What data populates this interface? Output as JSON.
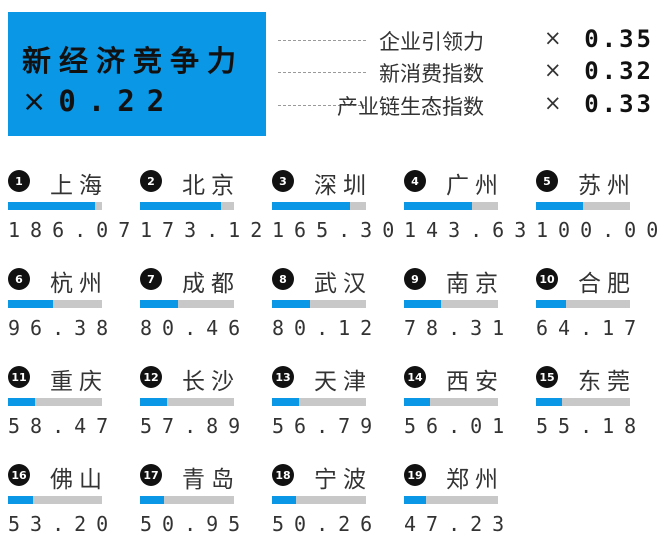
{
  "header": {
    "title": "新经济竞争力",
    "times": "×",
    "weight": "0.22"
  },
  "components": [
    {
      "name": "企业引领力",
      "times": "×",
      "weight": "0.35"
    },
    {
      "name": "新消费指数",
      "times": "×",
      "weight": "0.32"
    },
    {
      "name": "产业链生态指数",
      "times": "×",
      "weight": "0.33"
    }
  ],
  "chart_data": {
    "type": "bar",
    "max_value": 200,
    "categories": [
      "上海",
      "北京",
      "深圳",
      "广州",
      "苏州",
      "杭州",
      "成都",
      "武汉",
      "南京",
      "合肥",
      "重庆",
      "长沙",
      "天津",
      "西安",
      "东莞",
      "佛山",
      "青岛",
      "宁波",
      "郑州"
    ],
    "ranks": [
      "1",
      "2",
      "3",
      "4",
      "5",
      "6",
      "7",
      "8",
      "9",
      "10",
      "11",
      "12",
      "13",
      "14",
      "15",
      "16",
      "17",
      "18",
      "19"
    ],
    "labels": [
      "186.07",
      "173.12",
      "165.30",
      "143.63",
      "100.00",
      "96.38",
      "80.46",
      "80.12",
      "78.31",
      "64.17",
      "58.47",
      "57.89",
      "56.79",
      "56.01",
      "55.18",
      "53.20",
      "50.95",
      "50.26",
      "47.23"
    ],
    "values": [
      186.07,
      173.12,
      165.3,
      143.63,
      100.0,
      96.38,
      80.46,
      80.12,
      78.31,
      64.17,
      58.47,
      57.89,
      56.79,
      56.01,
      55.18,
      53.2,
      50.95,
      50.26,
      47.23
    ],
    "bar_color": "#0a97e6",
    "track_color": "#c8c8c8"
  }
}
